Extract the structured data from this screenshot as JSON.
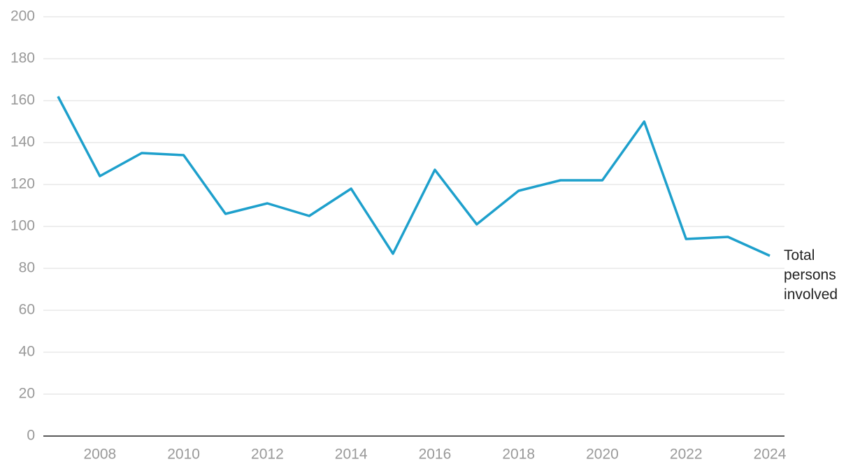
{
  "chart_data": {
    "type": "line",
    "x": [
      2007,
      2008,
      2009,
      2010,
      2011,
      2012,
      2013,
      2014,
      2015,
      2016,
      2017,
      2018,
      2019,
      2020,
      2021,
      2022,
      2023,
      2024
    ],
    "series": [
      {
        "name": "Total persons involved",
        "color": "#1ea0cc",
        "values": [
          162,
          124,
          135,
          134,
          106,
          111,
          105,
          118,
          87,
          127,
          101,
          117,
          122,
          122,
          150,
          94,
          95,
          86
        ]
      }
    ],
    "xlim": [
      2006.65,
      2024.35
    ],
    "xticks": [
      2008,
      2010,
      2012,
      2014,
      2016,
      2018,
      2020,
      2022,
      2024
    ],
    "ylim": [
      0,
      200
    ],
    "yticks": [
      0,
      20,
      40,
      60,
      80,
      100,
      120,
      140,
      160,
      180,
      200
    ],
    "grid": true
  }
}
